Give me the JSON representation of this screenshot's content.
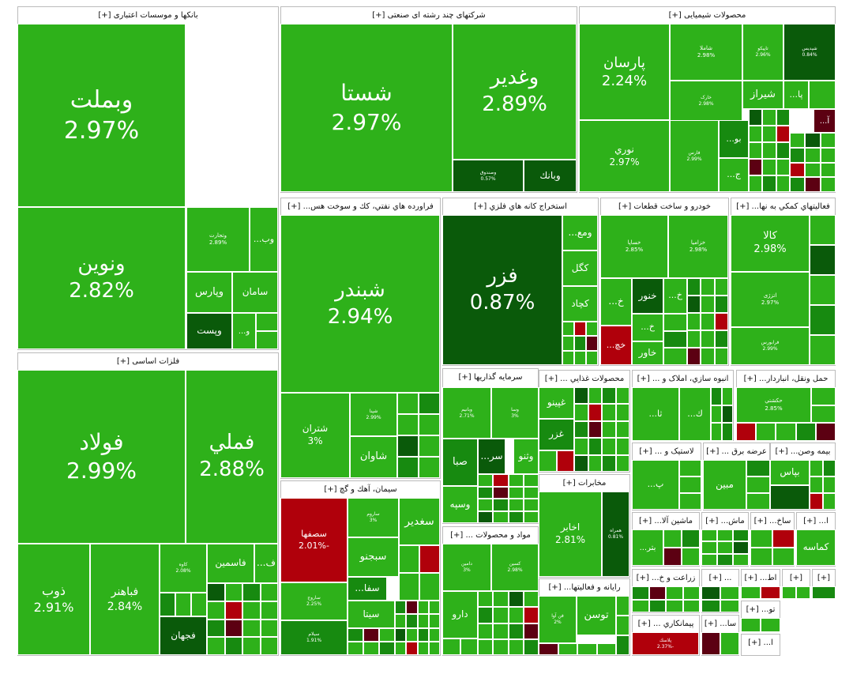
{
  "sectors": [
    {
      "title": "بانکها و موسسات اعتباری [+]",
      "tiles": [
        {
          "name": "وبملت",
          "change": "2.97%"
        },
        {
          "name": "ونوين",
          "change": "2.82%"
        },
        {
          "name": "وتجارت",
          "change": "2.89%"
        },
        {
          "name": "وب..."
        },
        {
          "name": "وپارس"
        },
        {
          "name": "سامان"
        },
        {
          "name": "وپست"
        },
        {
          "name": "و..."
        }
      ]
    },
    {
      "title": "فلزات اساسی [+]",
      "tiles": [
        {
          "name": "فولاد",
          "change": "2.99%"
        },
        {
          "name": "فملي",
          "change": "2.88%"
        },
        {
          "name": "ذوب",
          "change": "2.91%"
        },
        {
          "name": "فباهنر",
          "change": "2.84%"
        },
        {
          "name": "کاوه",
          "change": "2.08%"
        },
        {
          "name": "فاسمين"
        },
        {
          "name": "ف..."
        },
        {
          "name": "فجهان"
        }
      ]
    },
    {
      "title": "شرکتهای چند رشته ای صنعتی [+]",
      "tiles": [
        {
          "name": "شستا",
          "change": "2.97%"
        },
        {
          "name": "وغدير",
          "change": "2.89%"
        },
        {
          "name": "وصندوق",
          "change": "0.57%"
        },
        {
          "name": "وبانك"
        }
      ]
    },
    {
      "title": "محصولات شیمیایی [+]",
      "tiles": [
        {
          "name": "پارسان",
          "change": "2.24%"
        },
        {
          "name": "نوري",
          "change": "2.97%"
        },
        {
          "name": "شاملا",
          "change": "2.98%"
        },
        {
          "name": "تاپيكو",
          "change": "2.96%"
        },
        {
          "name": "شپديس",
          "change": "0.84%"
        },
        {
          "name": "خارک",
          "change": "2.98%"
        },
        {
          "name": "فارس",
          "change": "2.99%"
        },
        {
          "name": "شيراز"
        },
        {
          "name": "پا..."
        },
        {
          "name": "بو..."
        },
        {
          "name": "ج..."
        },
        {
          "name": "آ..."
        }
      ]
    },
    {
      "title": "فراورده هاي نفتي، كك و سوخت هس... [+]",
      "tiles": [
        {
          "name": "شبندر",
          "change": "2.94%"
        },
        {
          "name": "شتران",
          "change": "3%"
        },
        {
          "name": "شپنا",
          "change": "2.99%"
        },
        {
          "name": "شاوان"
        }
      ]
    },
    {
      "title": "استخراج كانه هاي فلزي [+]",
      "tiles": [
        {
          "name": "فزر",
          "change": "0.87%"
        },
        {
          "name": "ومع..."
        },
        {
          "name": "كگل"
        },
        {
          "name": "كچاد"
        }
      ]
    },
    {
      "title": "خودرو و ساخت قطعات [+]",
      "tiles": [
        {
          "name": "خساپا",
          "change": "2.85%"
        },
        {
          "name": "خزاميا",
          "change": "2.98%"
        },
        {
          "name": "خ..."
        },
        {
          "name": "خنور"
        },
        {
          "name": "خ..."
        },
        {
          "name": "خ..."
        },
        {
          "name": "خاور"
        },
        {
          "name": "خچ..."
        }
      ]
    },
    {
      "title": "فعاليتهاي كمكي به نها... [+]",
      "tiles": [
        {
          "name": "كالا",
          "change": "2.98%"
        },
        {
          "name": "اتزژی",
          "change": "2.97%"
        },
        {
          "name": "فرابورس",
          "change": "2.99%"
        }
      ]
    },
    {
      "title": "سرمايه گذاريها [+]",
      "tiles": [
        {
          "name": "وبانيم",
          "change": "2.71%"
        },
        {
          "name": "وسا",
          "change": "3%"
        },
        {
          "name": "صبا"
        },
        {
          "name": "سر..."
        },
        {
          "name": "وثنو"
        },
        {
          "name": "وسپه"
        }
      ]
    },
    {
      "title": "سيمان، آهك و گچ [+]",
      "tiles": [
        {
          "name": "سصفها",
          "change": "-2.01%"
        },
        {
          "name": "ساروم",
          "change": "3%"
        },
        {
          "name": "سغدير"
        },
        {
          "name": "سبجنو"
        },
        {
          "name": "سفا..."
        },
        {
          "name": "سيتا"
        },
        {
          "name": "ساروج",
          "change": "2.25%"
        },
        {
          "name": "سيلام",
          "change": "1.91%"
        }
      ]
    },
    {
      "title": "مواد و محصولات ... [+]",
      "tiles": [
        {
          "name": "دامين",
          "change": "3%"
        },
        {
          "name": "كسين",
          "change": "2.98%"
        },
        {
          "name": "دارو"
        }
      ]
    },
    {
      "title": "محصولات غذايي ... [+]",
      "tiles": [
        {
          "name": "غپينو"
        },
        {
          "name": "غزر"
        }
      ]
    },
    {
      "title": "مخابرات [+]",
      "tiles": [
        {
          "name": "اخابر",
          "change": "2.81%"
        },
        {
          "name": "همراه",
          "change": "0.81%"
        }
      ]
    },
    {
      "title": "رايانه و فعاليتها... [+]",
      "tiles": [
        {
          "name": "توسن"
        },
        {
          "name": "فن آوا",
          "change": "2%"
        }
      ]
    },
    {
      "title": "انبوه سازي، املاک و ... [+]",
      "tiles": [
        {
          "name": "ثا..."
        },
        {
          "name": "ك..."
        }
      ]
    },
    {
      "title": "حمل ونقل، انباردار... [+]",
      "tiles": [
        {
          "name": "حكشتي",
          "change": "2.85%"
        }
      ]
    },
    {
      "title": "لاستيک و ... [+]",
      "tiles": [
        {
          "name": "پ..."
        }
      ]
    },
    {
      "title": "عرضه برق ... [+]",
      "tiles": [
        {
          "name": "مبين"
        }
      ]
    },
    {
      "title": "بيمه وصن... [+]",
      "tiles": [
        {
          "name": "بپاس"
        }
      ]
    },
    {
      "title": "ماشين آلا... [+]",
      "tiles": [
        {
          "name": "بتر..."
        }
      ]
    },
    {
      "title": "ماش... [+]",
      "tiles": []
    },
    {
      "title": "ساخ... [+]",
      "tiles": []
    },
    {
      "title": "ا... [+]",
      "tiles": [
        {
          "name": "كماسه"
        }
      ]
    },
    {
      "title": "زراعت و خ... [+]",
      "tiles": []
    },
    {
      "title": "... [+]",
      "tiles": []
    },
    {
      "title": "اط... [+]",
      "tiles": []
    },
    {
      "title": "[+]",
      "tiles": []
    },
    {
      "title": "[+]",
      "tiles": []
    },
    {
      "title": "پيمانكاري ... [+]",
      "tiles": [
        {
          "name": "پلاسك",
          "change": "-2.37%"
        }
      ]
    },
    {
      "title": "سا... [+]",
      "tiles": []
    },
    {
      "title": "تو... [+]",
      "tiles": []
    },
    {
      "title": "ا... [+]",
      "tiles": []
    }
  ]
}
